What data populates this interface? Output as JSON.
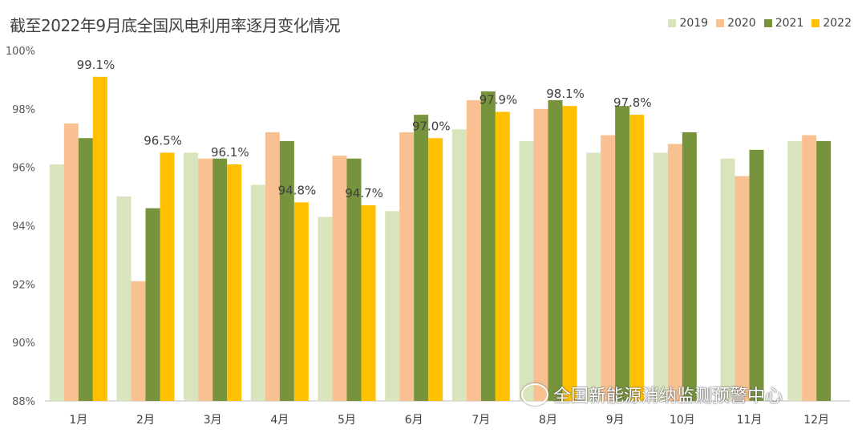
{
  "chart_data": {
    "type": "bar",
    "title": "截至2022年9月底全国风电利用率逐月变化情况",
    "categories": [
      "1月",
      "2月",
      "3月",
      "4月",
      "5月",
      "6月",
      "7月",
      "8月",
      "9月",
      "10月",
      "11月",
      "12月"
    ],
    "ylim": [
      88,
      100
    ],
    "yticks": [
      "88%",
      "90%",
      "92%",
      "94%",
      "96%",
      "98%",
      "100%"
    ],
    "ytick_values": [
      88,
      90,
      92,
      94,
      96,
      98,
      100
    ],
    "legend_position": "top-right",
    "grid": false,
    "series": [
      {
        "name": "2019",
        "color": "#d8e4bc",
        "values": [
          96.1,
          95.0,
          96.5,
          95.4,
          94.3,
          94.5,
          97.3,
          96.9,
          96.5,
          96.5,
          96.3,
          96.9
        ]
      },
      {
        "name": "2020",
        "color": "#f9c191",
        "values": [
          97.5,
          92.1,
          96.3,
          97.2,
          96.4,
          97.2,
          98.3,
          98.0,
          97.1,
          96.8,
          95.7,
          97.1
        ]
      },
      {
        "name": "2021",
        "color": "#77933c",
        "values": [
          97.0,
          94.6,
          96.3,
          96.9,
          96.3,
          97.8,
          98.6,
          98.3,
          98.1,
          97.2,
          96.6,
          96.9
        ]
      },
      {
        "name": "2022",
        "color": "#ffc000",
        "values": [
          99.1,
          96.5,
          96.1,
          94.8,
          94.7,
          97.0,
          97.9,
          98.1,
          97.8,
          null,
          null,
          null
        ]
      }
    ],
    "data_labels": [
      "99.1%",
      "96.5%",
      "96.1%",
      "94.8%",
      "94.7%",
      "97.0%",
      "97.9%",
      "98.1%",
      "97.8%"
    ]
  },
  "watermark": {
    "text": "全国新能源消纳监测预警中心",
    "icon": "wechat-icon"
  }
}
